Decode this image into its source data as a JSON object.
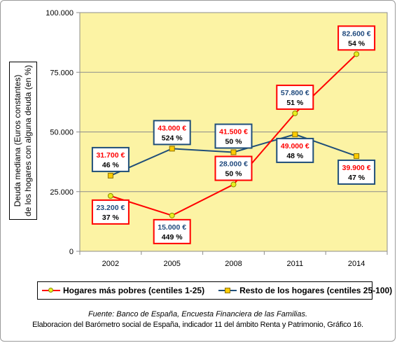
{
  "chart_data": {
    "type": "line",
    "categories": [
      "2002",
      "2005",
      "2008",
      "2011",
      "2014"
    ],
    "ylim": [
      0,
      100000
    ],
    "yticks": [
      "0",
      "25.000",
      "50.000",
      "75.000",
      "100.000"
    ],
    "ytick_values": [
      0,
      25000,
      50000,
      75000,
      100000
    ],
    "ylabel_lines": [
      "Deuda mediana (Euros constantes)",
      "de los hogares con alguna deuda (en %)"
    ],
    "grid": "horizontal",
    "legend_position": "bottom",
    "series": [
      {
        "name": "Hogares más pobres (centiles 1-25)",
        "color": "#ff0000",
        "values": [
          23200,
          15000,
          28000,
          57800,
          82600
        ],
        "value_labels": [
          "23.200 €",
          "15.000 €",
          "28.000 €",
          "57.800 €",
          "82.600 €"
        ],
        "pct_labels": [
          "37 %",
          "449 %",
          "50 %",
          "51 %",
          "54 %"
        ],
        "label_text_color": "#1f497d",
        "label_border_color": "#ff0000"
      },
      {
        "name": "Resto de los hogares (centiles 25-100)",
        "color": "#1f4e79",
        "values": [
          31700,
          43000,
          41500,
          49000,
          39900
        ],
        "value_labels": [
          "31.700 €",
          "43.000 €",
          "41.500 €",
          "49.000 €",
          "39.900 €"
        ],
        "pct_labels": [
          "46 %",
          "524 %",
          "50 %",
          "48 %",
          "47 %"
        ],
        "label_text_color": "#ff0000",
        "label_border_color": "#1f4e79"
      }
    ]
  },
  "source": {
    "line1": "Fuente: Banco de España, Encuesta Financiera de las Familias.",
    "line2": "Elaboracion del Barómetro social de España, indicador  11 del ámbito Renta y Patrimonio, Gráfico 16."
  },
  "colors": {
    "plot_background": "#fcf3a4",
    "poor_marker": "#e8f020",
    "rest_marker": "#ffcc00"
  }
}
